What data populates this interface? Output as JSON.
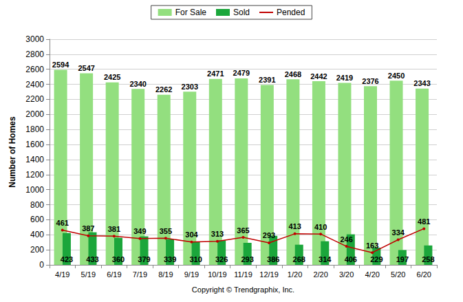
{
  "chart_data": {
    "type": "bar",
    "categories": [
      "4/19",
      "5/19",
      "6/19",
      "7/19",
      "8/19",
      "9/19",
      "10/19",
      "11/19",
      "12/19",
      "1/20",
      "2/20",
      "3/20",
      "4/20",
      "5/20",
      "6/20"
    ],
    "series": [
      {
        "name": "For Sale",
        "type": "bar",
        "color": "#93df7f",
        "values": [
          2594,
          2547,
          2425,
          2340,
          2262,
          2303,
          2471,
          2479,
          2391,
          2468,
          2442,
          2419,
          2376,
          2450,
          2343
        ]
      },
      {
        "name": "Sold",
        "type": "bar",
        "color": "#1ba63b",
        "values": [
          423,
          433,
          360,
          379,
          339,
          310,
          326,
          293,
          386,
          268,
          314,
          406,
          229,
          197,
          258
        ]
      },
      {
        "name": "Pended",
        "type": "line",
        "color": "#c00000",
        "marker": "circle",
        "values": [
          461,
          387,
          381,
          349,
          355,
          304,
          313,
          365,
          293,
          413,
          410,
          246,
          163,
          334,
          481
        ]
      }
    ],
    "ylabel": "Number of Homes",
    "xlabel": "Copyright © Trendgraphix, Inc.",
    "ylim": [
      0,
      3000
    ],
    "yticks": [
      0,
      200,
      400,
      600,
      800,
      1000,
      1200,
      1400,
      1600,
      1800,
      2000,
      2200,
      2400,
      2600,
      2800,
      3000
    ],
    "grid": true,
    "legend": "top",
    "data_labels": true
  }
}
